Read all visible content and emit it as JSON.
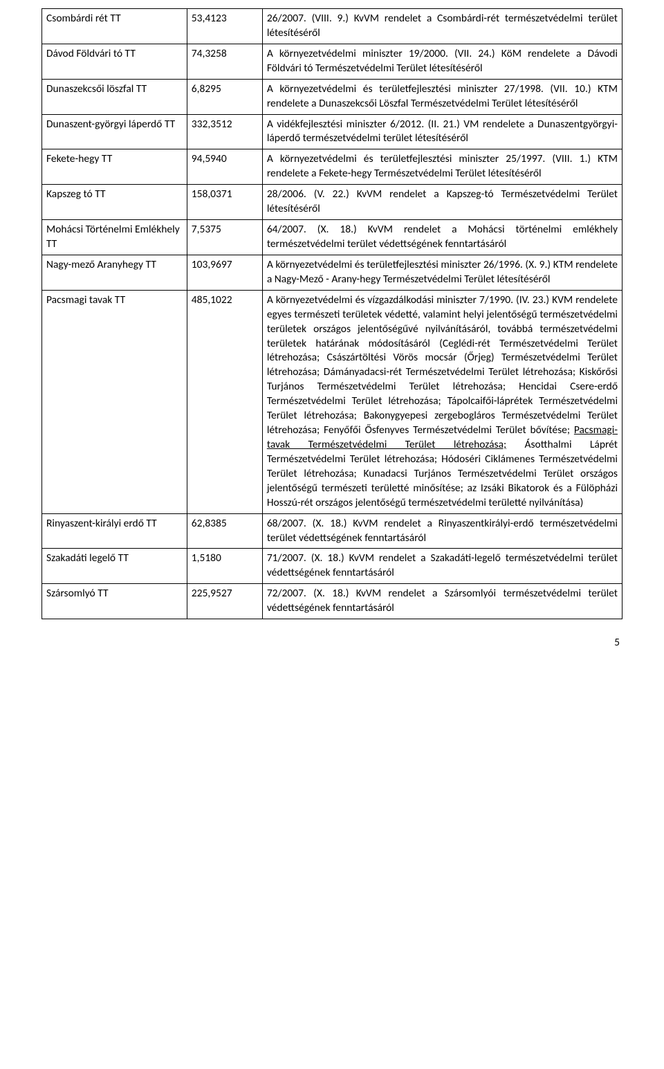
{
  "page_number": "5",
  "rows": [
    {
      "name": "Csombárdi rét TT",
      "value": "53,4123",
      "desc": "26/2007. (VIII. 9.) KvVM rendelet a Csombárdi-rét természetvédelmi terület létesítéséről"
    },
    {
      "name": "Dávod Földvári tó TT",
      "value": "74,3258",
      "desc": "A környezetvédelmi miniszter 19/2000. (VII. 24.) KöM rendelete a Dávodi Földvári tó Természetvédelmi Terület létesítéséről"
    },
    {
      "name": "Dunaszekcsői löszfal TT",
      "value": "6,8295",
      "desc": "A környezetvédelmi és területfejlesztési miniszter 27/1998. (VII. 10.) KTM rendelete a Dunaszekcsői Löszfal Természetvédelmi Terület létesítéséről"
    },
    {
      "name": "Dunaszent-györgyi láperdő TT",
      "value": "332,3512",
      "desc": "A vidékfejlesztési miniszter 6/2012. (II. 21.) VM rendelete a Dunaszentgyörgyi-láperdő természetvédelmi terület létesítéséről"
    },
    {
      "name": "Fekete-hegy TT",
      "value": "94,5940",
      "desc": "A környezetvédelmi és területfejlesztési miniszter 25/1997. (VIII. 1.) KTM rendelete a Fekete-hegy Természetvédelmi Terület létesítéséről"
    },
    {
      "name": "Kapszeg tó TT",
      "value": "158,0371",
      "desc": "28/2006. (V. 22.) KvVM rendelet a Kapszeg-tó Természetvédelmi Terület létesítéséről"
    },
    {
      "name": "Mohácsi Történelmi Emlékhely TT",
      "value": "7,5375",
      "desc": "64/2007. (X. 18.) KvVM rendelet a Mohácsi történelmi emlékhely természetvédelmi terület védettségének fenntartásáról"
    },
    {
      "name": "Nagy-mező Aranyhegy TT",
      "value": "103,9697",
      "desc": "A környezetvédelmi és területfejlesztési miniszter 26/1996. (X. 9.) KTM rendelete a Nagy-Mező - Arany-hegy Természetvédelmi Terület létesítéséről"
    },
    {
      "name": "Pacsmagi tavak TT",
      "value": "485,1022",
      "desc_pre": "A környezetvédelmi és vízgazdálkodási miniszter 7/1990. (IV. 23.) KVM rendelete egyes természeti területek védetté, valamint helyi jelentőségű természetvédelmi területek országos jelentőségűvé nyilvánításáról, továbbá természetvédelmi területek határának módosításáról\n(Ceglédi-rét Természetvédelmi Terület létrehozása; Császártöltési Vörös mocsár (Őrjeg) Természetvédelmi Terület létrehozása; Dámányadacsi-rét Természetvédelmi Terület létrehozása; Kiskőrősi Turjános Természetvédelmi Terület létrehozása; Hencidai Csere-erdő Természetvédelmi Terület létrehozása; Tápolcaifői-láprétek Természetvédelmi Terület létrehozása; Bakonygyepesi zergebogláros Természetvédelmi Terület létrehozása; Fenyőfői Ősfenyves Természetvédelmi Terület bővítése; ",
      "desc_ul": "Pacsmagi-tavak Természetvédelmi Terület létrehozása;",
      "desc_post": " Ásotthalmi Láprét Természetvédelmi Terület létrehozása; Hódoséri Ciklámenes Természetvédelmi Terület létrehozása; Kunadacsi Turjános Természetvédelmi Terület országos jelentőségű természeti területté minősítése; az Izsáki Bikatorok és a Fülöpházi Hosszú-rét országos jelentőségű természetvédelmi területté nyilvánítása)"
    },
    {
      "name": "Rinyaszent-királyi erdő TT",
      "value": "62,8385",
      "desc": "68/2007. (X. 18.) KvVM rendelet a Rinyaszentkirályi-erdő természetvédelmi terület védettségének fenntartásáról"
    },
    {
      "name": "Szakadáti legelő TT",
      "value": "1,5180",
      "desc": "71/2007. (X. 18.) KvVM rendelet a Szakadáti-legelő természetvédelmi terület védettségének fenntartásáról"
    },
    {
      "name": "Szársomlyó TT",
      "value": "225,9527",
      "desc": "72/2007. (X. 18.) KvVM rendelet a Szársomlyói természetvédelmi terület védettségének fenntartásáról"
    }
  ]
}
